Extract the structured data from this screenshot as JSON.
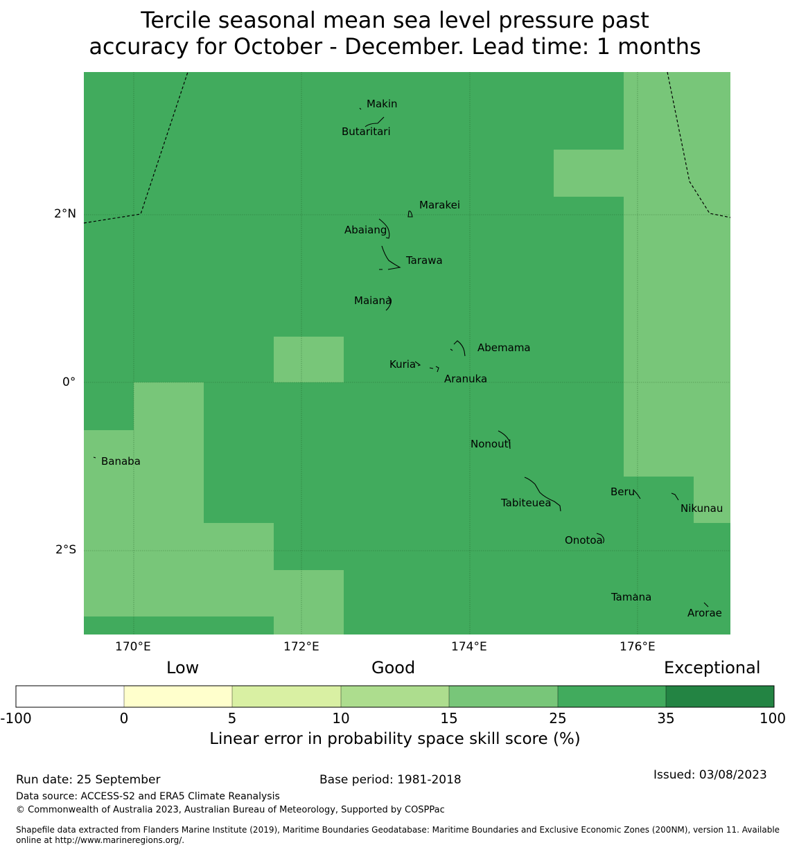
{
  "title": {
    "line1": "Tercile seasonal mean sea level pressure past",
    "line2": "accuracy for October - December. Lead time: 1 months"
  },
  "map": {
    "axis_labels": {
      "lon": [
        "170°E",
        "172°E",
        "174°E",
        "176°E"
      ],
      "lat": [
        "2°N",
        "0°",
        "2°S"
      ]
    },
    "places": [
      "Makin",
      "Butaritari",
      "Marakei",
      "Abaiang",
      "Tarawa",
      "Maiana",
      "Abemama",
      "Kuria",
      "Aranuka",
      "Nonouti",
      "Banaba",
      "Beru",
      "Nikunau",
      "Tabiteuea",
      "Onotoa",
      "Tamana",
      "Arorae"
    ]
  },
  "colorbar": {
    "headers": [
      "Low",
      "Good",
      "Exceptional"
    ],
    "ticks": [
      "-100",
      "0",
      "5",
      "10",
      "15",
      "25",
      "35",
      "100"
    ],
    "colors": [
      "#ffffff",
      "#ffffcc",
      "#d9f0a3",
      "#addd8e",
      "#78c679",
      "#41ab5d",
      "#238443"
    ],
    "label": "Linear error in probability space skill score (%)"
  },
  "footer": {
    "run_date": "Run date: 25 September",
    "base_period": "Base period: 1981-2018",
    "issued": "Issued: 03/08/2023",
    "data_source": "Data source: ACCESS-S2 and ERA5 Climate Reanalysis",
    "copyright": "© Commonwealth of Australia 2023, Australian Bureau of Meteorology, Supported by COSPPac",
    "shapefile_line1": "Shapefile data extracted from Flanders Marine Institute (2019), Maritime Boundaries Geodatabase: Maritime Boundaries and Exclusive Economic Zones (200NM), version 11. Available",
    "shapefile_line2": "online at http://www.marineregions.org/."
  }
}
